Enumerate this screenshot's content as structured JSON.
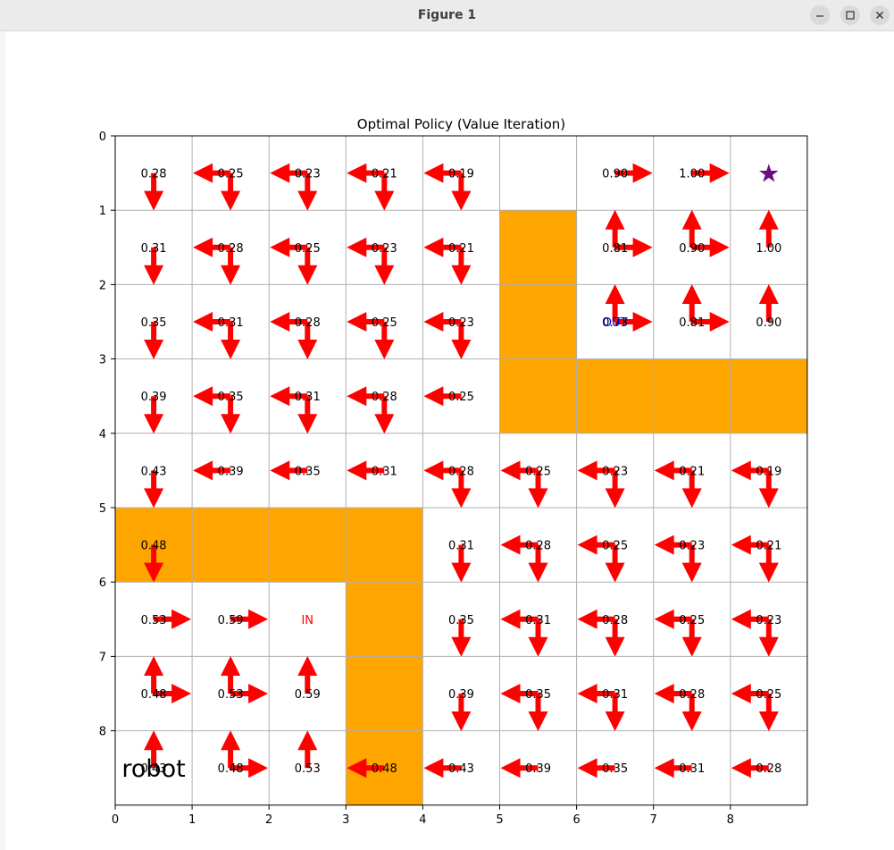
{
  "window": {
    "title": "Figure 1",
    "controls": [
      "minimize-icon",
      "maximize-icon",
      "close-icon"
    ]
  },
  "chart_data": {
    "type": "heatmap",
    "title": "Optimal Policy (Value Iteration)",
    "xlabel": "",
    "ylabel": "",
    "xlim": [
      0,
      9
    ],
    "ylim": [
      9,
      0
    ],
    "x_ticks": [
      "0",
      "1",
      "2",
      "3",
      "4",
      "5",
      "6",
      "7",
      "8"
    ],
    "y_ticks": [
      "0",
      "1",
      "2",
      "3",
      "4",
      "5",
      "6",
      "7",
      "8"
    ],
    "grid": true,
    "walls": [
      [
        0,
        5
      ],
      [
        1,
        5
      ],
      [
        2,
        5
      ],
      [
        3,
        5
      ],
      [
        3,
        6
      ],
      [
        3,
        7
      ],
      [
        3,
        8
      ],
      [
        5,
        1
      ],
      [
        5,
        2
      ],
      [
        5,
        3
      ],
      [
        6,
        3
      ],
      [
        7,
        3
      ],
      [
        8,
        3
      ]
    ],
    "values": [
      [
        "0.28",
        "0.25",
        "0.23",
        "0.21",
        "0.19",
        "",
        "0.90",
        "1.00",
        ""
      ],
      [
        "0.31",
        "0.28",
        "0.25",
        "0.23",
        "0.21",
        "",
        "0.81",
        "0.90",
        "1.00"
      ],
      [
        "0.35",
        "0.31",
        "0.28",
        "0.25",
        "0.23",
        "",
        "0.73",
        "0.81",
        "0.90"
      ],
      [
        "0.39",
        "0.35",
        "0.31",
        "0.28",
        "0.25",
        "",
        "",
        "",
        ""
      ],
      [
        "0.43",
        "0.39",
        "0.35",
        "0.31",
        "0.28",
        "0.25",
        "0.23",
        "0.21",
        "0.19"
      ],
      [
        "0.48",
        "",
        "",
        "",
        "0.31",
        "0.28",
        "0.25",
        "0.23",
        "0.21"
      ],
      [
        "0.53",
        "0.59",
        "",
        "",
        "0.35",
        "0.31",
        "0.28",
        "0.25",
        "0.23"
      ],
      [
        "0.48",
        "0.53",
        "0.59",
        "",
        "0.39",
        "0.35",
        "0.31",
        "0.28",
        "0.25"
      ],
      [
        "0.43",
        "0.48",
        "0.53",
        "0.48",
        "0.43",
        "0.39",
        "0.35",
        "0.31",
        "0.28"
      ]
    ],
    "policy": [
      [
        "D",
        "LD",
        "LD",
        "LD",
        "LD",
        "",
        "R",
        "R",
        ""
      ],
      [
        "D",
        "LD",
        "LD",
        "LD",
        "LD",
        "",
        "UR",
        "UR",
        "U"
      ],
      [
        "D",
        "LD",
        "LD",
        "LD",
        "LD",
        "",
        "UR",
        "UR",
        "U"
      ],
      [
        "D",
        "LD",
        "LD",
        "LD",
        "L",
        "",
        "",
        "",
        ""
      ],
      [
        "D",
        "L",
        "L",
        "L",
        "LD",
        "LD",
        "LD",
        "LD",
        "LD"
      ],
      [
        "D",
        "",
        "",
        "",
        "D",
        "LD",
        "LD",
        "LD",
        "LD"
      ],
      [
        "R",
        "R",
        "",
        "",
        "D",
        "LD",
        "LD",
        "LD",
        "LD"
      ],
      [
        "UR",
        "UR",
        "U",
        "",
        "D",
        "LD",
        "LD",
        "LD",
        "LD"
      ],
      [
        "U",
        "UR",
        "U",
        "L",
        "L",
        "L",
        "L",
        "L",
        "L"
      ]
    ],
    "annotations": [
      {
        "text": "OUT",
        "row": 2,
        "col": 6,
        "color": "#0000cc"
      },
      {
        "text": "IN",
        "row": 6,
        "col": 2,
        "color": "#ff0000"
      },
      {
        "text": "robot",
        "row": 8,
        "col": 0,
        "color": "#000000"
      }
    ],
    "goal": {
      "symbol": "★",
      "row": 0,
      "col": 8,
      "color": "#6a0d83"
    },
    "colors": {
      "wall": "#ffa500",
      "arrow": "#ff0000",
      "grid": "#b0b0b0"
    }
  }
}
